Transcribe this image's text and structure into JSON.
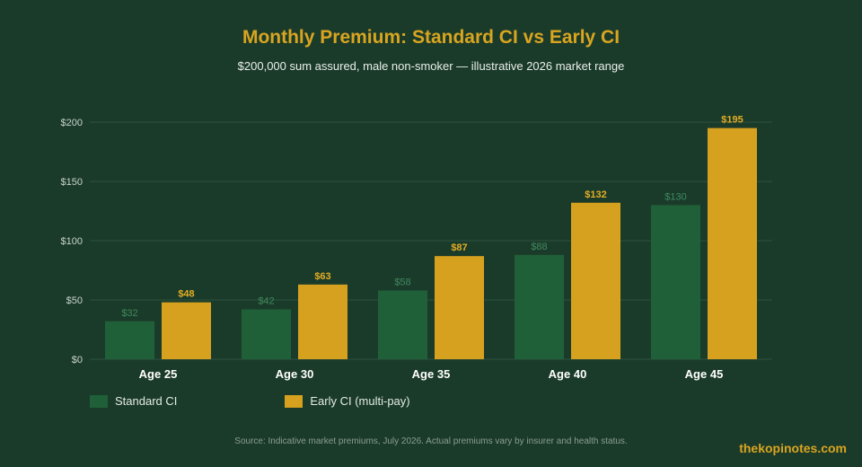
{
  "colors": {
    "background": "#1b3b2a",
    "standard": "#1f6038",
    "early": "#d6a11e",
    "standard_label": "#3e8a5e",
    "early_label": "#e3ad24",
    "title": "#d9a520",
    "grid": "#2d5240",
    "axis_text": "#c9d3cc"
  },
  "chart_data": {
    "type": "bar",
    "title": "Monthly Premium: Standard CI vs Early CI",
    "subtitle": "$200,000 sum assured, male non-smoker — illustrative 2026 market range",
    "categories": [
      "Age 25",
      "Age 30",
      "Age 35",
      "Age 40",
      "Age 45"
    ],
    "series": [
      {
        "name": "Standard CI",
        "values": [
          32,
          42,
          58,
          88,
          130
        ],
        "labels": [
          "$32",
          "$42",
          "$58",
          "$88",
          "$130"
        ]
      },
      {
        "name": "Early CI (multi-pay)",
        "values": [
          48,
          63,
          87,
          132,
          195
        ],
        "labels": [
          "$48",
          "$63",
          "$87",
          "$132",
          "$195"
        ]
      }
    ],
    "ylim": [
      0,
      200
    ],
    "yticks": [
      0,
      50,
      100,
      150,
      200
    ],
    "ytick_labels": [
      "$0",
      "$50",
      "$100",
      "$150",
      "$200"
    ],
    "grid": true,
    "legend": "bottom-left"
  },
  "footer": {
    "source": "Source: Indicative market premiums, July 2026. Actual premiums vary by insurer and health status.",
    "brand": "thekopinotes.com"
  }
}
